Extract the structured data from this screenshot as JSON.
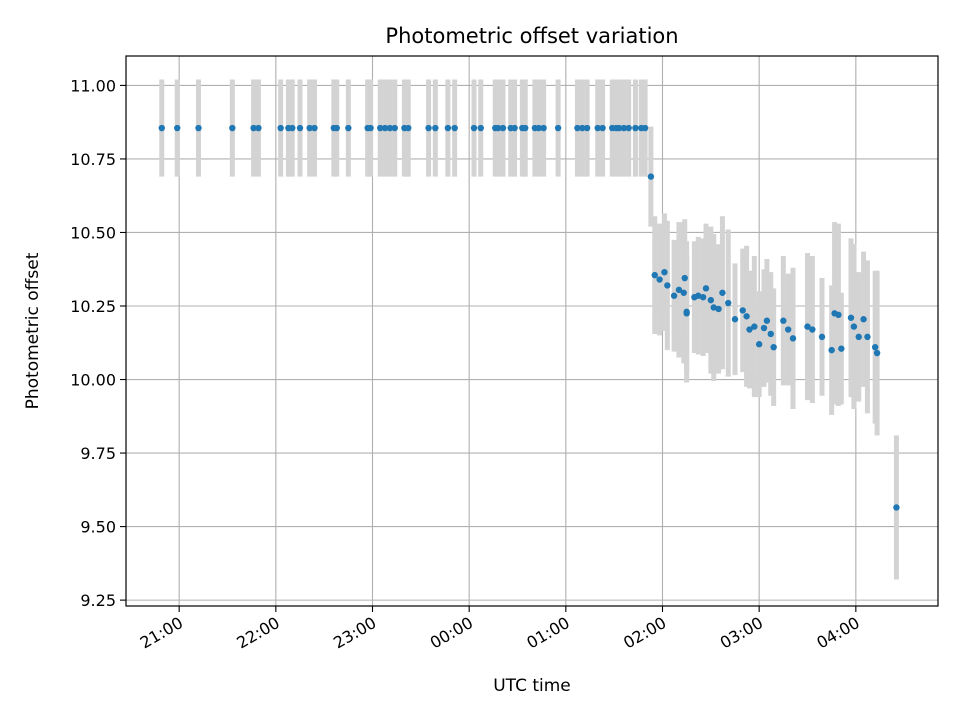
{
  "chart_data": {
    "type": "scatter",
    "title": "Photometric offset variation",
    "xlabel": "UTC time",
    "ylabel": "Photometric offset",
    "x_unit": "hours, UTC (times after midnight shown as hours past 24:00)",
    "xlim": [
      20.45,
      28.85
    ],
    "ylim": [
      9.23,
      11.1
    ],
    "grid": true,
    "legend": "none",
    "x_ticks": [
      21,
      22,
      23,
      24,
      25,
      26,
      27,
      28
    ],
    "x_tick_labels": [
      "21:00",
      "22:00",
      "23:00",
      "00:00",
      "01:00",
      "02:00",
      "03:00",
      "04:00"
    ],
    "y_ticks": [
      9.25,
      9.5,
      9.75,
      10.0,
      10.25,
      10.5,
      10.75,
      11.0
    ],
    "y_tick_labels": [
      "9.25",
      "9.50",
      "9.75",
      "10.00",
      "10.25",
      "10.50",
      "10.75",
      "11.00"
    ],
    "colors": {
      "marker": "#1f77b4",
      "errorbar": "#d3d3d3",
      "grid": "#b0b0b0"
    },
    "series": [
      {
        "points": [
          [
            20.82,
            10.855,
            0.165
          ],
          [
            20.98,
            10.855,
            0.165
          ],
          [
            21.2,
            10.855,
            0.165
          ],
          [
            21.55,
            10.855,
            0.165
          ],
          [
            21.77,
            10.855,
            0.165
          ],
          [
            21.82,
            10.855,
            0.165
          ],
          [
            22.05,
            10.855,
            0.165
          ],
          [
            22.13,
            10.855,
            0.165
          ],
          [
            22.17,
            10.855,
            0.165
          ],
          [
            22.25,
            10.855,
            0.165
          ],
          [
            22.35,
            10.855,
            0.165
          ],
          [
            22.4,
            10.855,
            0.165
          ],
          [
            22.6,
            10.855,
            0.165
          ],
          [
            22.63,
            10.855,
            0.165
          ],
          [
            22.75,
            10.855,
            0.165
          ],
          [
            22.95,
            10.855,
            0.165
          ],
          [
            22.98,
            10.855,
            0.165
          ],
          [
            23.08,
            10.855,
            0.165
          ],
          [
            23.13,
            10.855,
            0.165
          ],
          [
            23.18,
            10.855,
            0.165
          ],
          [
            23.23,
            10.855,
            0.165
          ],
          [
            23.33,
            10.855,
            0.165
          ],
          [
            23.37,
            10.855,
            0.165
          ],
          [
            23.58,
            10.855,
            0.165
          ],
          [
            23.65,
            10.855,
            0.165
          ],
          [
            23.78,
            10.855,
            0.165
          ],
          [
            23.85,
            10.855,
            0.165
          ],
          [
            24.05,
            10.855,
            0.165
          ],
          [
            24.12,
            10.855,
            0.165
          ],
          [
            24.27,
            10.855,
            0.165
          ],
          [
            24.3,
            10.855,
            0.165
          ],
          [
            24.35,
            10.855,
            0.165
          ],
          [
            24.43,
            10.855,
            0.165
          ],
          [
            24.47,
            10.855,
            0.165
          ],
          [
            24.55,
            10.855,
            0.165
          ],
          [
            24.58,
            10.855,
            0.165
          ],
          [
            24.68,
            10.855,
            0.165
          ],
          [
            24.72,
            10.855,
            0.165
          ],
          [
            24.77,
            10.855,
            0.165
          ],
          [
            24.92,
            10.855,
            0.165
          ],
          [
            25.12,
            10.855,
            0.165
          ],
          [
            25.17,
            10.855,
            0.165
          ],
          [
            25.22,
            10.855,
            0.165
          ],
          [
            25.33,
            10.855,
            0.165
          ],
          [
            25.38,
            10.855,
            0.165
          ],
          [
            25.48,
            10.855,
            0.165
          ],
          [
            25.52,
            10.855,
            0.165
          ],
          [
            25.55,
            10.855,
            0.165
          ],
          [
            25.6,
            10.855,
            0.165
          ],
          [
            25.65,
            10.855,
            0.165
          ],
          [
            25.72,
            10.855,
            0.165
          ],
          [
            25.78,
            10.855,
            0.165
          ],
          [
            25.82,
            10.855,
            0.165
          ],
          [
            25.88,
            10.69,
            0.17
          ],
          [
            25.92,
            10.355,
            0.2
          ],
          [
            25.97,
            10.34,
            0.19
          ],
          [
            26.02,
            10.365,
            0.2
          ],
          [
            26.05,
            10.32,
            0.22
          ],
          [
            26.12,
            10.285,
            0.19
          ],
          [
            26.17,
            10.305,
            0.23
          ],
          [
            26.22,
            10.295,
            0.24
          ],
          [
            26.23,
            10.345,
            0.2
          ],
          [
            26.25,
            10.23,
            0.24
          ],
          [
            26.25,
            10.225,
            0.2
          ],
          [
            26.33,
            10.28,
            0.19
          ],
          [
            26.37,
            10.285,
            0.2
          ],
          [
            26.42,
            10.28,
            0.2
          ],
          [
            26.45,
            10.31,
            0.22
          ],
          [
            26.5,
            10.27,
            0.25
          ],
          [
            26.53,
            10.245,
            0.25
          ],
          [
            26.58,
            10.24,
            0.22
          ],
          [
            26.62,
            10.295,
            0.26
          ],
          [
            26.68,
            10.26,
            0.25
          ],
          [
            26.75,
            10.205,
            0.19
          ],
          [
            26.83,
            10.235,
            0.21
          ],
          [
            26.87,
            10.215,
            0.24
          ],
          [
            26.9,
            10.17,
            0.2
          ],
          [
            26.95,
            10.18,
            0.24
          ],
          [
            27.0,
            10.12,
            0.18
          ],
          [
            27.05,
            10.175,
            0.2
          ],
          [
            27.08,
            10.2,
            0.21
          ],
          [
            27.12,
            10.155,
            0.21
          ],
          [
            27.15,
            10.11,
            0.2
          ],
          [
            27.25,
            10.2,
            0.22
          ],
          [
            27.3,
            10.17,
            0.19
          ],
          [
            27.35,
            10.14,
            0.24
          ],
          [
            27.5,
            10.18,
            0.25
          ],
          [
            27.55,
            10.17,
            0.25
          ],
          [
            27.65,
            10.145,
            0.2
          ],
          [
            27.75,
            10.1,
            0.22
          ],
          [
            27.78,
            10.225,
            0.31
          ],
          [
            27.82,
            10.22,
            0.31
          ],
          [
            27.85,
            10.105,
            0.19
          ],
          [
            27.95,
            10.21,
            0.27
          ],
          [
            27.98,
            10.18,
            0.28
          ],
          [
            28.03,
            10.145,
            0.22
          ],
          [
            28.08,
            10.205,
            0.23
          ],
          [
            28.12,
            10.145,
            0.26
          ],
          [
            28.2,
            10.11,
            0.26
          ],
          [
            28.22,
            10.09,
            0.28
          ],
          [
            28.42,
            9.565,
            0.245
          ]
        ]
      }
    ]
  }
}
